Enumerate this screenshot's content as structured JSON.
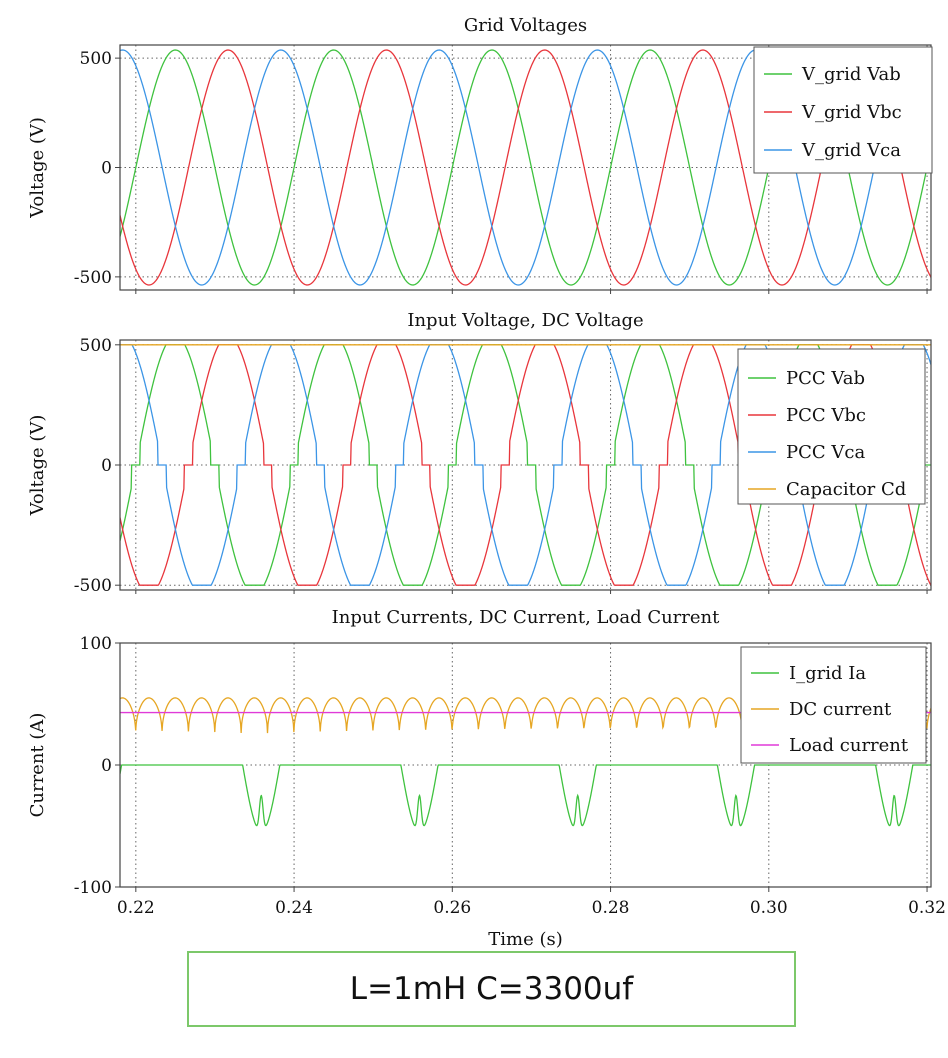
{
  "colors": {
    "green": "#3fc23f",
    "red": "#e8363c",
    "blue": "#3c95e6",
    "orange": "#e6a623",
    "magenta": "#e03ad8",
    "axis": "#444444",
    "grid": "#666666"
  },
  "caption": "L=1mH C=3300uf",
  "chart_data": [
    {
      "type": "line",
      "title": "Grid Voltages",
      "xlabel": "",
      "ylabel": "Voltage (V)",
      "xlim": [
        0.218,
        0.3205
      ],
      "ylim": [
        -560,
        560
      ],
      "yticks": [
        500,
        0,
        -500
      ],
      "ytick_labels": [
        "500",
        "0",
        "-500"
      ],
      "xgrid": [
        0.22,
        0.24,
        0.26,
        0.28,
        0.3,
        0.32
      ],
      "grid": true,
      "legend_position": "top-right",
      "series": [
        {
          "name": "V_grid Vab",
          "color": "green",
          "kind": "sine",
          "amplitude": 537,
          "frequency_hz": 50,
          "phase_deg": 0
        },
        {
          "name": "V_grid Vbc",
          "color": "red",
          "kind": "sine",
          "amplitude": 537,
          "frequency_hz": 50,
          "phase_deg": -120
        },
        {
          "name": "V_grid Vca",
          "color": "blue",
          "kind": "sine",
          "amplitude": 537,
          "frequency_hz": 50,
          "phase_deg": 120
        }
      ]
    },
    {
      "type": "line",
      "title": "Input Voltage, DC Voltage",
      "xlabel": "",
      "ylabel": "Voltage (V)",
      "xlim": [
        0.218,
        0.3205
      ],
      "ylim": [
        -520,
        520
      ],
      "yticks": [
        500,
        0,
        -500
      ],
      "ytick_labels": [
        "500",
        "0",
        "-500"
      ],
      "xgrid": [
        0.22,
        0.24,
        0.26,
        0.28,
        0.3,
        0.32
      ],
      "grid": true,
      "legend_position": "top-right",
      "series": [
        {
          "name": "PCC Vab",
          "color": "green",
          "kind": "clipped-sine",
          "amplitude": 537,
          "frequency_hz": 50,
          "phase_deg": 0,
          "clip": 500
        },
        {
          "name": "PCC Vbc",
          "color": "red",
          "kind": "clipped-sine",
          "amplitude": 537,
          "frequency_hz": 50,
          "phase_deg": -120,
          "clip": 500
        },
        {
          "name": "PCC Vca",
          "color": "blue",
          "kind": "clipped-sine",
          "amplitude": 537,
          "frequency_hz": 50,
          "phase_deg": 120,
          "clip": 500
        },
        {
          "name": "Capacitor Cd",
          "color": "orange",
          "kind": "constant",
          "value": 500
        }
      ]
    },
    {
      "type": "line",
      "title": "Input Currents, DC Current, Load Current",
      "xlabel": "Time (s)",
      "ylabel": "Current (A)",
      "xlim": [
        0.218,
        0.3205
      ],
      "ylim": [
        -100,
        100
      ],
      "yticks": [
        100,
        0,
        -100
      ],
      "ytick_labels": [
        "100",
        "0",
        "-100"
      ],
      "xticks": [
        0.22,
        0.24,
        0.26,
        0.28,
        0.3,
        0.32
      ],
      "xtick_labels": [
        "0.22",
        "0.24",
        "0.26",
        "0.28",
        "0.30",
        "0.32"
      ],
      "xgrid": [
        0.22,
        0.24,
        0.26,
        0.28,
        0.3,
        0.32
      ],
      "grid": true,
      "legend_position": "top-right",
      "series": [
        {
          "name": "I_grid Ia",
          "color": "green",
          "kind": "rectifier-pulses",
          "period_s": 0.02,
          "peak": -55,
          "dip": -25,
          "pulse_start_s": 0.2335,
          "pulse_width_s": 0.0047
        },
        {
          "name": "DC current",
          "color": "orange",
          "kind": "ripple",
          "max": 55,
          "min": 25,
          "period_s": 0.003333
        },
        {
          "name": "Load current",
          "color": "magenta",
          "kind": "constant",
          "value": 43
        }
      ]
    }
  ]
}
